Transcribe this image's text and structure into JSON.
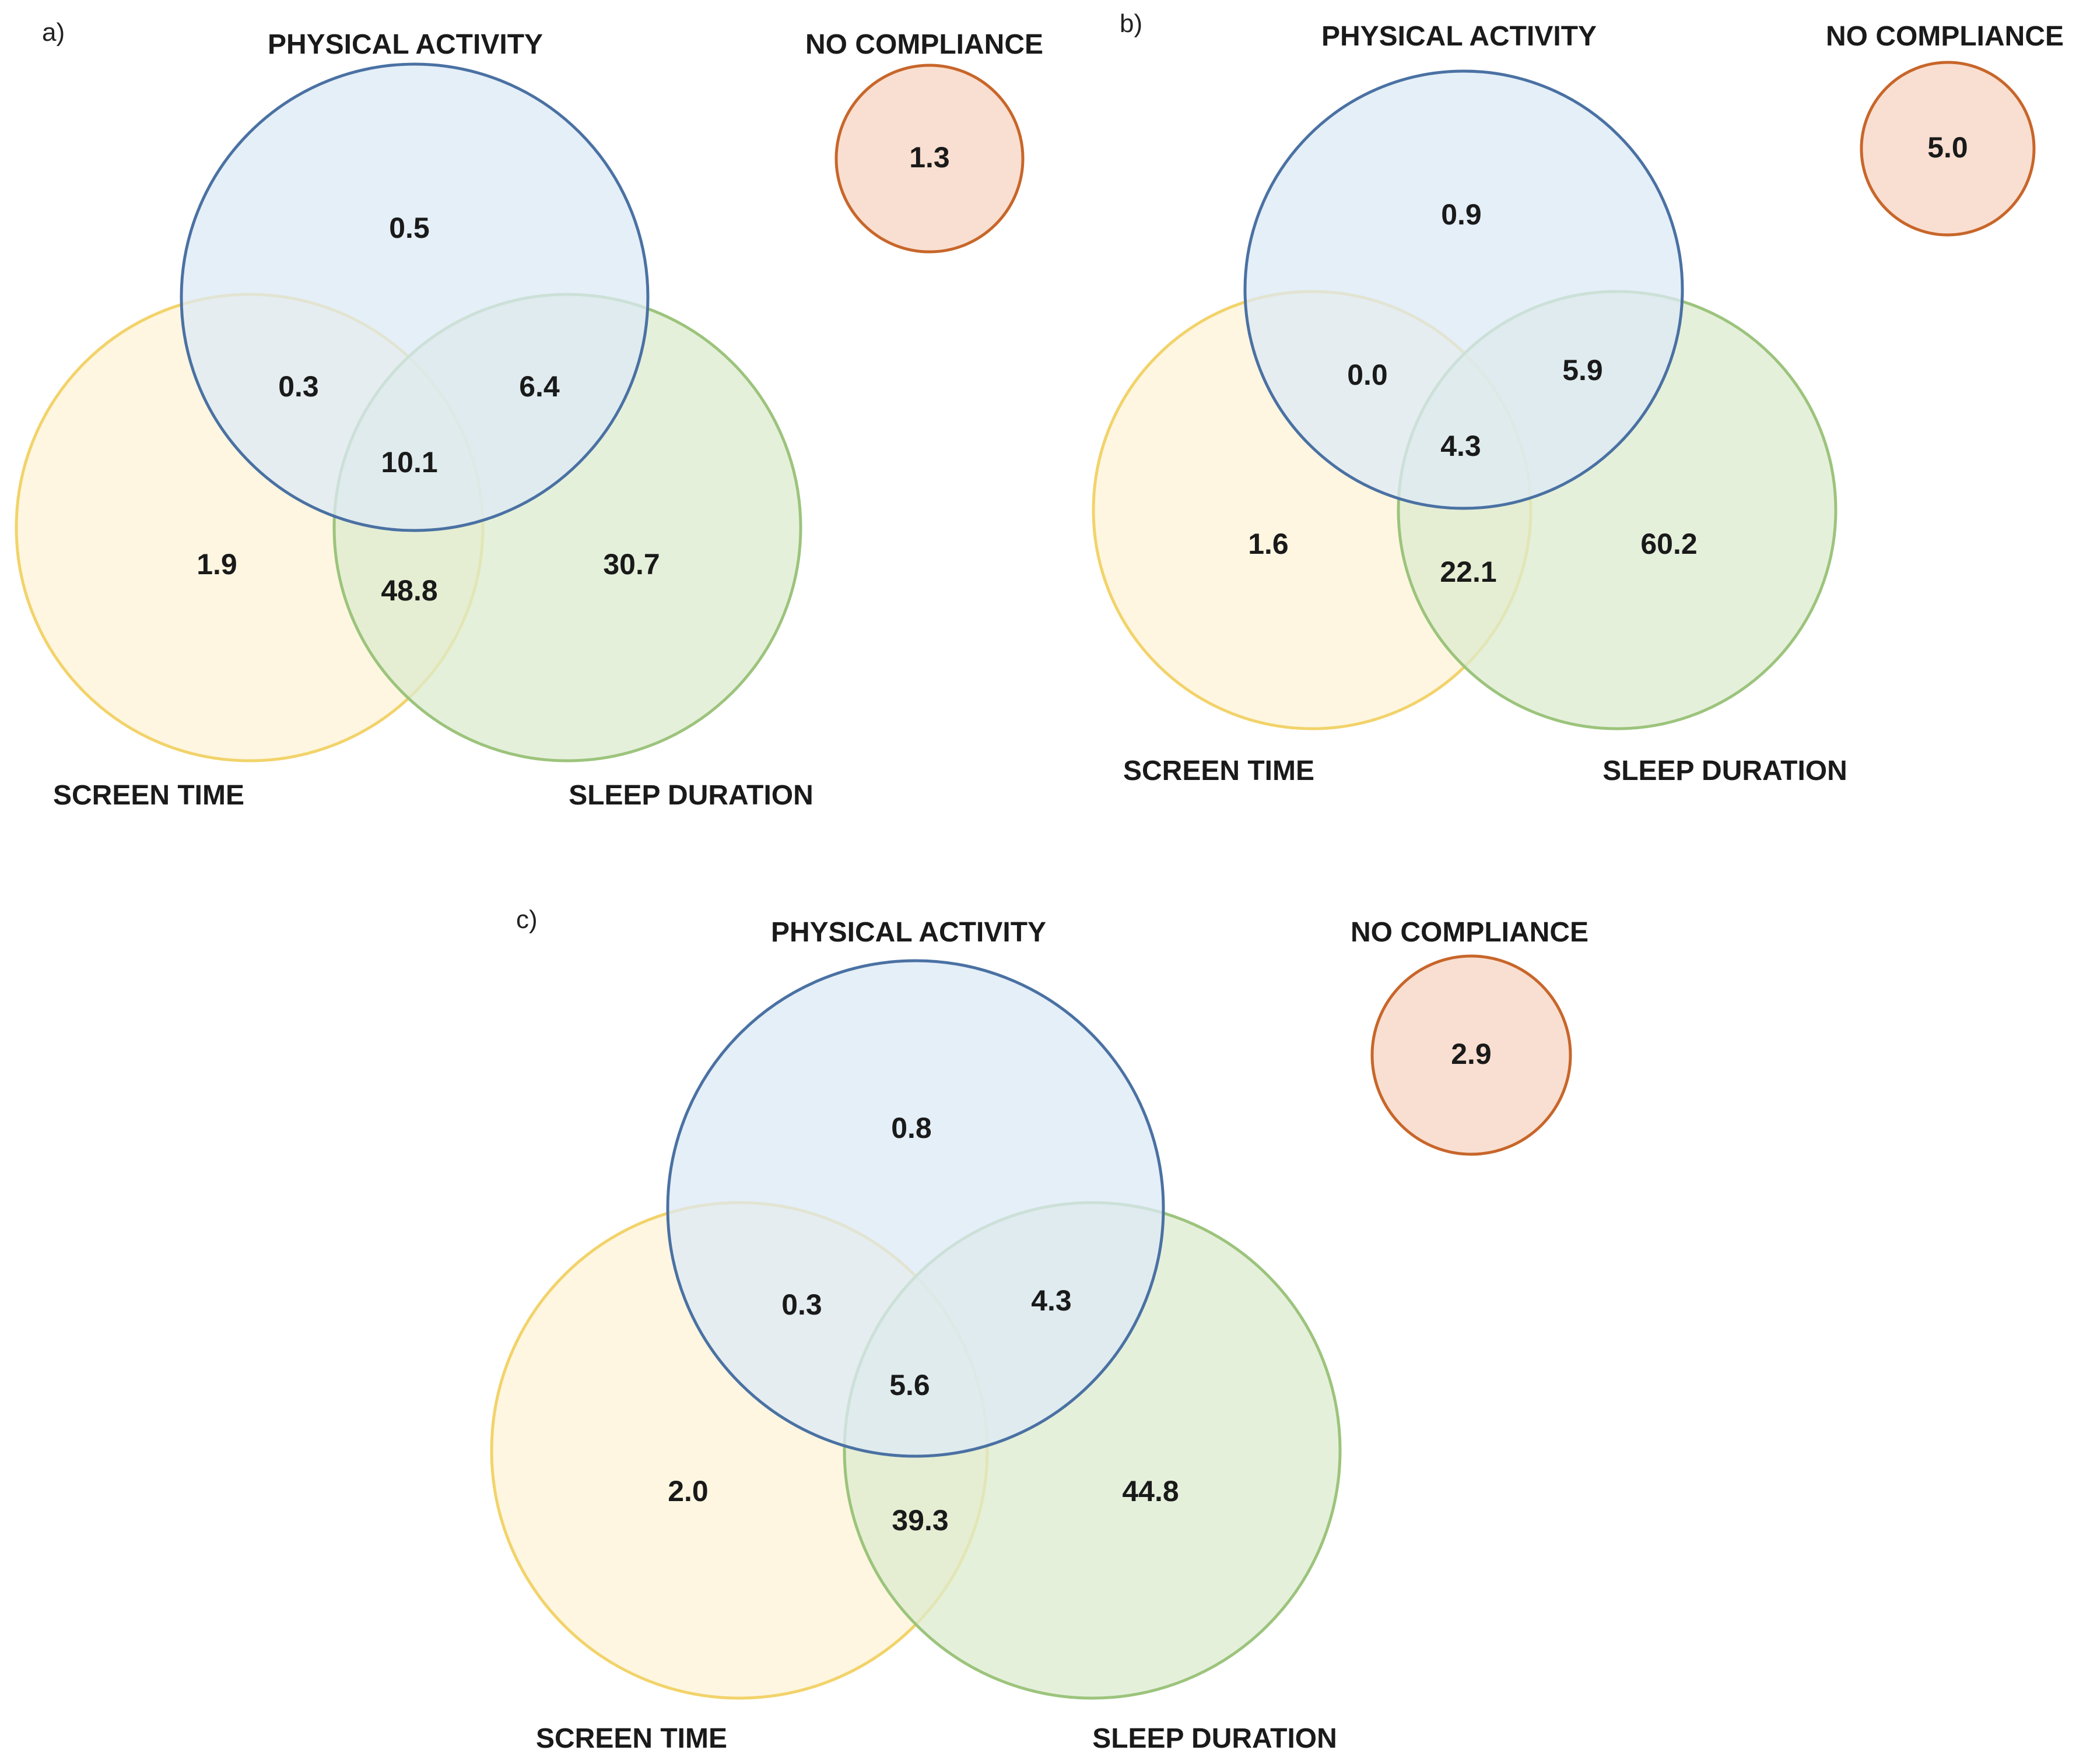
{
  "colors": {
    "physical_fill": "#dce9f6",
    "physical_stroke": "#4a71a3",
    "screen_fill": "#fdf3d6",
    "screen_stroke": "#f2d36a",
    "sleep_fill": "#dcebcf",
    "sleep_stroke": "#9cc47c",
    "none_fill": "#f9dfd1",
    "none_stroke": "#c8662a"
  },
  "panels": [
    {
      "tag": "a)",
      "labels": {
        "physical": "PHYSICAL ACTIVITY",
        "none": "NO COMPLIANCE",
        "screen": "SCREEN TIME",
        "sleep": "SLEEP DURATION"
      },
      "values": {
        "physical_only": "0.5",
        "physical_screen": "0.3",
        "physical_sleep": "6.4",
        "all_three": "10.1",
        "screen_only": "1.9",
        "screen_sleep": "48.8",
        "sleep_only": "30.7",
        "none": "1.3"
      }
    },
    {
      "tag": "b)",
      "labels": {
        "physical": "PHYSICAL ACTIVITY",
        "none": "NO COMPLIANCE",
        "screen": "SCREEN TIME",
        "sleep": "SLEEP DURATION"
      },
      "values": {
        "physical_only": "0.9",
        "physical_screen": "0.0",
        "physical_sleep": "5.9",
        "all_three": "4.3",
        "screen_only": "1.6",
        "screen_sleep": "22.1",
        "sleep_only": "60.2",
        "none": "5.0"
      }
    },
    {
      "tag": "c)",
      "labels": {
        "physical": "PHYSICAL ACTIVITY",
        "none": "NO COMPLIANCE",
        "screen": "SCREEN TIME",
        "sleep": "SLEEP DURATION"
      },
      "values": {
        "physical_only": "0.8",
        "physical_screen": "0.3",
        "physical_sleep": "4.3",
        "all_three": "5.6",
        "screen_only": "2.0",
        "screen_sleep": "39.3",
        "sleep_only": "44.8",
        "none": "2.9"
      }
    }
  ]
}
